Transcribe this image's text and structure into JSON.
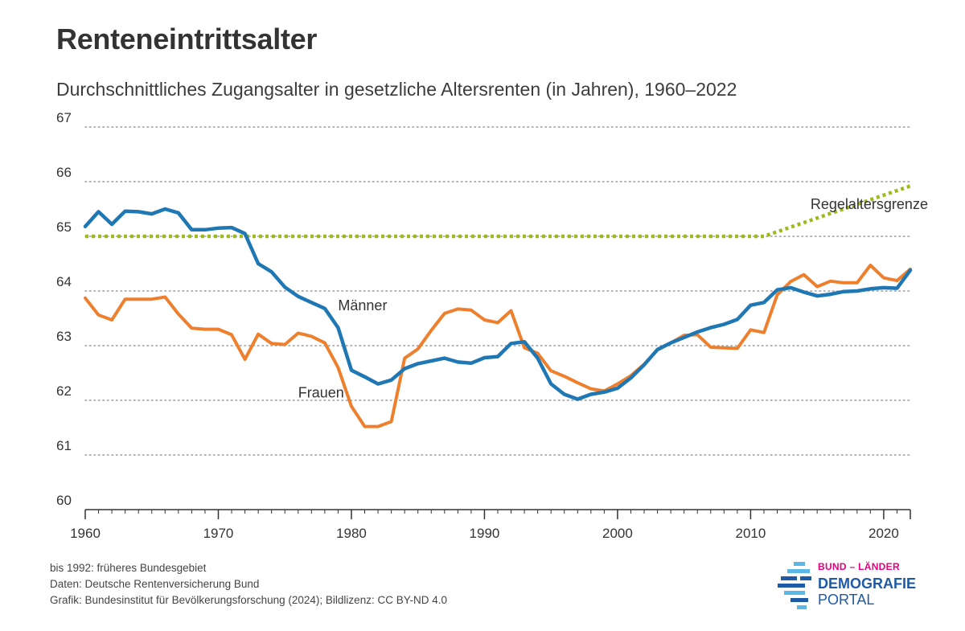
{
  "title": "Renteneintrittsalter",
  "subtitle": "Durchschnittliches Zugangsalter in gesetzliche Altersrenten (in Jahren), 1960–2022",
  "footer": {
    "line1": "bis 1992: früheres Bundesgebiet",
    "line2": "Daten: Deutsche Rentenversicherung Bund",
    "line3": "Grafik: Bundesinstitut für Bevölkerungsforschung (2024); Bildlizenz: CC BY-ND 4.0"
  },
  "logo": {
    "line1": "BUND – LÄNDER",
    "line2": "DEMOGRAFIE",
    "line3": "PORTAL"
  },
  "colors": {
    "maenner": "#1f78b4",
    "frauen": "#ee7f2d",
    "regelaltersgrenze": "#9bbb1e",
    "grid": "#9a9a9a",
    "axis": "#333333",
    "logo_pink": "#e5007d",
    "logo_blue": "#1f5aa6",
    "logo_light": "#5bb8e6"
  },
  "chart_data": {
    "type": "line",
    "title": "Renteneintrittsalter",
    "subtitle": "Durchschnittliches Zugangsalter in gesetzliche Altersrenten (in Jahren), 1960–2022",
    "xlim": [
      1960,
      2022
    ],
    "ylim": [
      60,
      67
    ],
    "x_ticks": [
      1960,
      1970,
      1980,
      1990,
      2000,
      2010,
      2020
    ],
    "y_ticks": [
      60,
      61,
      62,
      63,
      64,
      65,
      66,
      67
    ],
    "grid": "horizontal dotted",
    "x": [
      1960,
      1961,
      1962,
      1963,
      1964,
      1965,
      1966,
      1967,
      1968,
      1969,
      1970,
      1971,
      1972,
      1973,
      1974,
      1975,
      1976,
      1977,
      1978,
      1979,
      1980,
      1981,
      1982,
      1983,
      1984,
      1985,
      1986,
      1987,
      1988,
      1989,
      1990,
      1991,
      1992,
      1993,
      1994,
      1995,
      1996,
      1997,
      1998,
      1999,
      2000,
      2001,
      2002,
      2003,
      2004,
      2005,
      2006,
      2007,
      2008,
      2009,
      2010,
      2011,
      2012,
      2013,
      2014,
      2015,
      2016,
      2017,
      2018,
      2019,
      2020,
      2021,
      2022
    ],
    "series": [
      {
        "name": "Männer",
        "values": [
          65.18,
          65.45,
          65.22,
          65.46,
          65.45,
          65.41,
          65.5,
          65.43,
          65.12,
          65.12,
          65.15,
          65.16,
          65.05,
          64.5,
          64.35,
          64.07,
          63.9,
          63.79,
          63.68,
          63.33,
          62.55,
          62.43,
          62.3,
          62.37,
          62.58,
          62.67,
          62.72,
          62.77,
          62.7,
          62.68,
          62.78,
          62.8,
          63.04,
          63.07,
          62.77,
          62.3,
          62.11,
          62.02,
          62.11,
          62.15,
          62.22,
          62.41,
          62.65,
          62.93,
          63.05,
          63.15,
          63.25,
          63.33,
          63.39,
          63.48,
          63.74,
          63.79,
          64.02,
          64.06,
          63.98,
          63.91,
          63.94,
          63.99,
          64.0,
          64.04,
          64.06,
          64.05,
          64.38
        ]
      },
      {
        "name": "Frauen",
        "values": [
          63.87,
          63.56,
          63.47,
          63.85,
          63.85,
          63.85,
          63.89,
          63.58,
          63.32,
          63.3,
          63.3,
          63.2,
          62.75,
          63.21,
          63.04,
          63.02,
          63.23,
          63.17,
          63.05,
          62.6,
          61.89,
          61.52,
          61.52,
          61.61,
          62.77,
          62.94,
          63.28,
          63.59,
          63.67,
          63.65,
          63.47,
          63.42,
          63.64,
          62.96,
          62.86,
          62.54,
          62.44,
          62.32,
          62.21,
          62.17,
          62.3,
          62.45,
          62.66,
          62.92,
          63.05,
          63.19,
          63.2,
          62.97,
          62.96,
          62.95,
          63.29,
          63.24,
          63.93,
          64.17,
          64.3,
          64.08,
          64.18,
          64.15,
          64.15,
          64.47,
          64.24,
          64.19,
          64.4
        ]
      },
      {
        "name": "Regelaltersgrenze",
        "style": "dotted",
        "x": [
          1960,
          2011,
          2022
        ],
        "values": [
          65,
          65,
          65.92
        ]
      }
    ],
    "annotations": [
      {
        "text": "Männer",
        "x": 1979,
        "y": 63.65
      },
      {
        "text": "Frauen",
        "x": 1976,
        "y": 62.05
      },
      {
        "text": "Regelaltersgrenze",
        "x": 2014.5,
        "y": 65.5
      }
    ]
  }
}
